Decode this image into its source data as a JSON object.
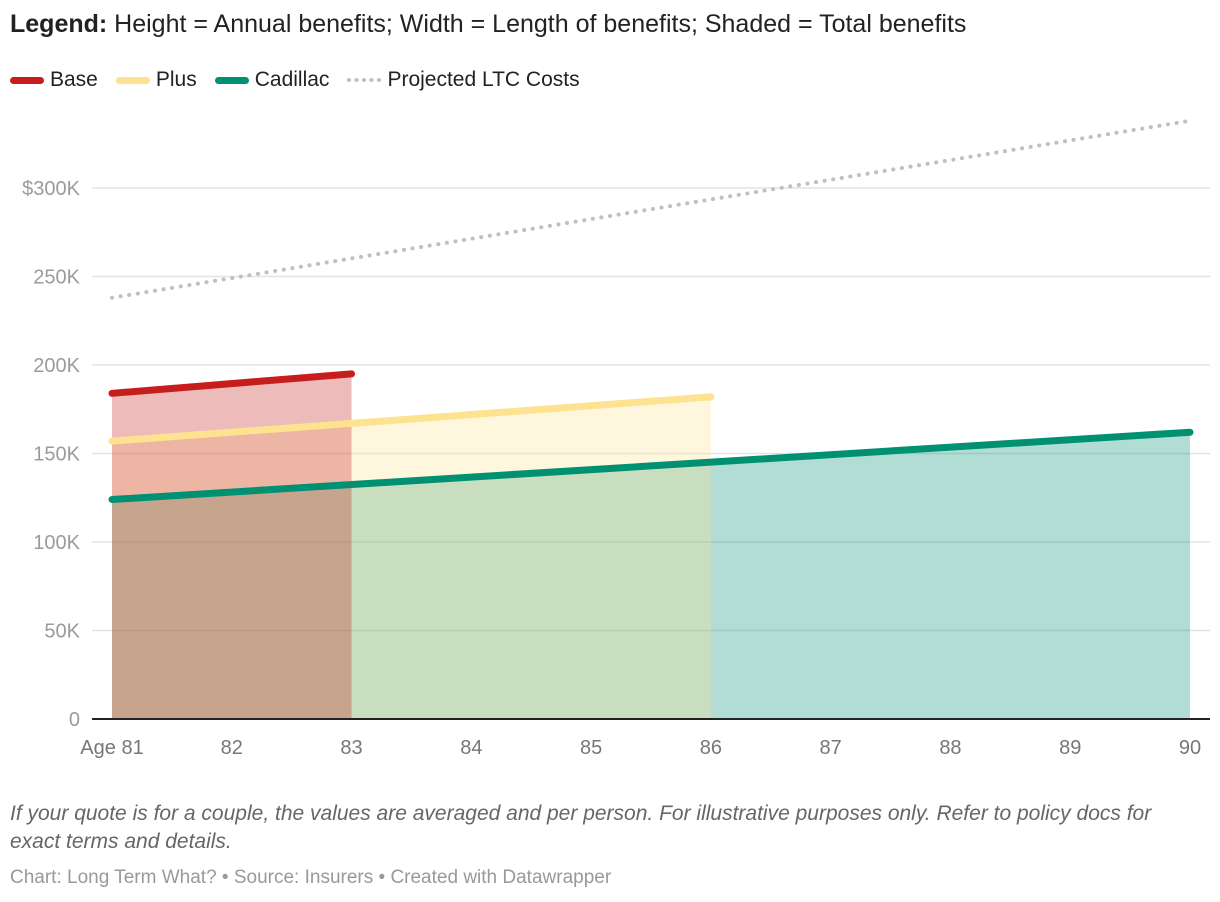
{
  "title": {
    "bold": "Legend:",
    "text": "Height = Annual benefits; Width = Length of benefits; Shaded = Total benefits"
  },
  "note": "If your quote is for a couple, the values are averaged and per person. For illustrative purposes only. Refer to policy docs for exact terms and details.",
  "credit": "Chart: Long Term What? • Source: Insurers • Created with Datawrapper",
  "chart_data": {
    "type": "area",
    "title": "",
    "xlabel": "",
    "ylabel": "",
    "xlim": [
      81,
      90
    ],
    "ylim": [
      0,
      340000
    ],
    "grid": true,
    "legend_position": "top-left",
    "x_ticks": [
      81,
      82,
      83,
      84,
      85,
      86,
      87,
      88,
      89,
      90
    ],
    "x_tick_labels": [
      "Age 81",
      "82",
      "83",
      "84",
      "85",
      "86",
      "87",
      "88",
      "89",
      "90"
    ],
    "y_ticks": [
      0,
      50000,
      100000,
      150000,
      200000,
      250000,
      300000
    ],
    "y_tick_labels": [
      "0",
      "50K",
      "100K",
      "150K",
      "200K",
      "250K",
      "$300K"
    ],
    "series": [
      {
        "name": "Projected LTC Costs",
        "color": "#c0c0c0",
        "style": "dotted",
        "filled": false,
        "x": [
          81,
          90
        ],
        "y": [
          238000,
          338000
        ]
      },
      {
        "name": "Cadillac",
        "color": "#009072",
        "style": "solid",
        "filled": true,
        "x": [
          81,
          90
        ],
        "y": [
          124000,
          162000
        ]
      },
      {
        "name": "Plus",
        "color": "#fde28f",
        "style": "solid",
        "filled": true,
        "x": [
          81,
          86
        ],
        "y": [
          157000,
          182000
        ]
      },
      {
        "name": "Base",
        "color": "#c71e1d",
        "style": "solid",
        "filled": true,
        "x": [
          81,
          83
        ],
        "y": [
          184000,
          195000
        ]
      }
    ],
    "legend_order": [
      "Base",
      "Plus",
      "Cadillac",
      "Projected LTC Costs"
    ]
  }
}
